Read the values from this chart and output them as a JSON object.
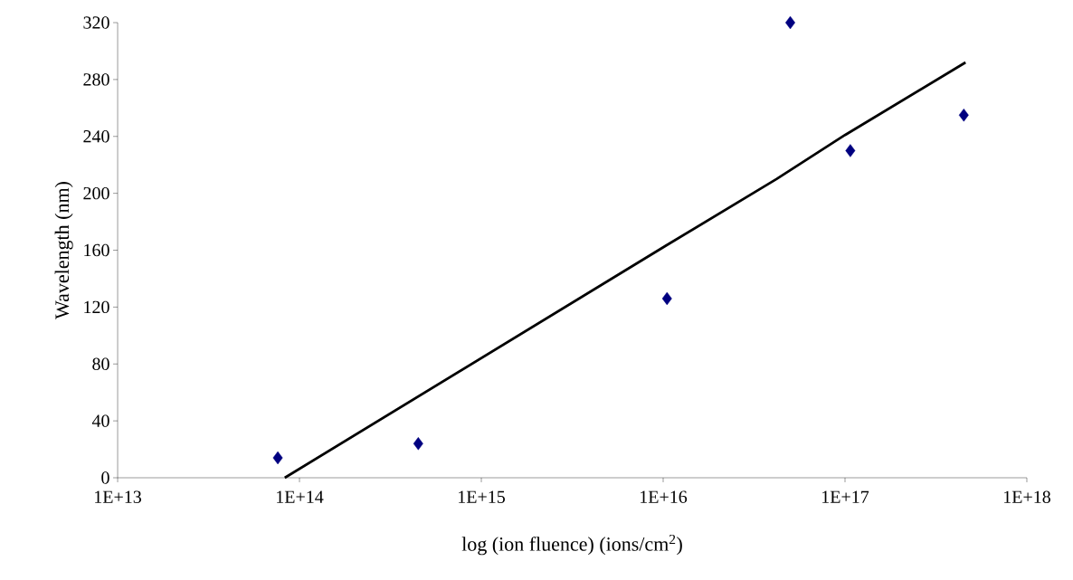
{
  "chart_data": {
    "type": "scatter",
    "xlabel": "log (ion fluence) (ions/cm$^{2}$)",
    "ylabel": "Wavelength (nm)",
    "log": "x",
    "xlim": [
      10000000000000.0,
      1e+18
    ],
    "xticks": [
      {
        "value": 10000000000000.0,
        "label": "1E+13"
      },
      {
        "value": 100000000000000.0,
        "label": "1E+14"
      },
      {
        "value": 1000000000000000.0,
        "label": "1E+15"
      },
      {
        "value": 1e+16,
        "label": "1E+16"
      },
      {
        "value": 1e+17,
        "label": "1E+17"
      },
      {
        "value": 1e+18,
        "label": "1E+18"
      }
    ],
    "ylim": [
      0,
      320
    ],
    "yticks": [
      0,
      40,
      80,
      120,
      160,
      200,
      240,
      280,
      320
    ],
    "grid": false,
    "series": [
      {
        "color": "#000080",
        "marker": "diamond",
        "x": [
          76000000000000.0,
          450000000000000.0,
          1.05e+16,
          5e+16,
          1.07e+17,
          4.5e+17
        ],
        "values": [
          14,
          24,
          126,
          320,
          230,
          255
        ]
      },
      {
        "type": "line",
        "color": "#000000",
        "marker": "none",
        "line_style": "solid",
        "x": [
          83000000000000.0,
          1.03e+16,
          4.2e+16,
          1e+17,
          4.6e+17
        ],
        "values": [
          0,
          163,
          210,
          241,
          292
        ]
      }
    ]
  }
}
